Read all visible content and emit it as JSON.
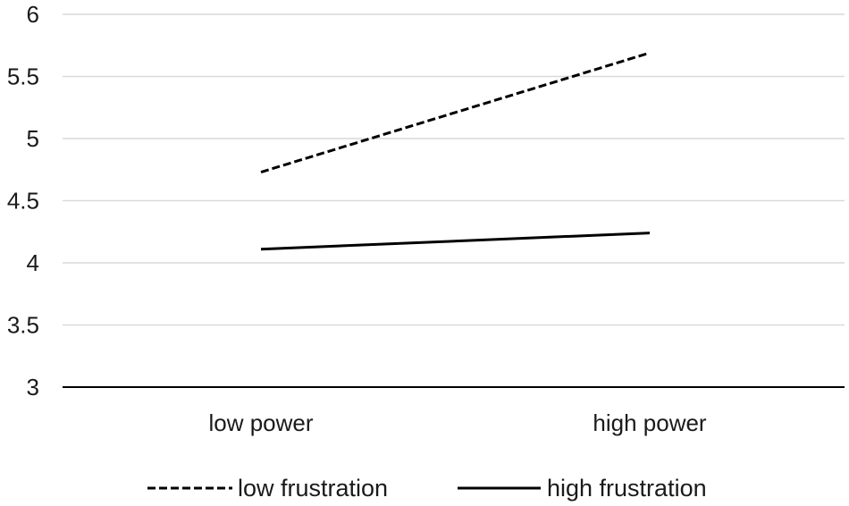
{
  "chart_data": {
    "type": "line",
    "title": "",
    "xlabel": "",
    "ylabel": "",
    "categories": [
      "low power",
      "high power"
    ],
    "ylim": [
      3,
      6
    ],
    "yticks": [
      "3",
      "3.5",
      "4",
      "4.5",
      "5",
      "5.5",
      "6"
    ],
    "grid": true,
    "legend_position": "bottom",
    "series": [
      {
        "name": "low frustration",
        "values": [
          4.73,
          5.69
        ],
        "line_style": "dashed",
        "color": "#000000"
      },
      {
        "name": "high frustration",
        "values": [
          4.11,
          4.24
        ],
        "line_style": "solid",
        "color": "#000000"
      }
    ]
  },
  "colors": {
    "gridline": "#d9d9d9",
    "axis": "#000000",
    "text": "#1a1a1a"
  }
}
